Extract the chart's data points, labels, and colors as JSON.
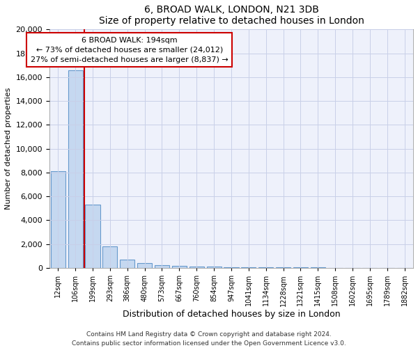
{
  "title": "6, BROAD WALK, LONDON, N21 3DB",
  "subtitle": "Size of property relative to detached houses in London",
  "xlabel": "Distribution of detached houses by size in London",
  "ylabel": "Number of detached properties",
  "categories": [
    "12sqm",
    "106sqm",
    "199sqm",
    "293sqm",
    "386sqm",
    "480sqm",
    "573sqm",
    "667sqm",
    "760sqm",
    "854sqm",
    "947sqm",
    "1041sqm",
    "1134sqm",
    "1228sqm",
    "1321sqm",
    "1415sqm",
    "1508sqm",
    "1602sqm",
    "1695sqm",
    "1789sqm",
    "1882sqm"
  ],
  "values": [
    8100,
    16600,
    5300,
    1800,
    700,
    380,
    250,
    170,
    130,
    100,
    80,
    60,
    50,
    40,
    35,
    30,
    25,
    20,
    15,
    12,
    10
  ],
  "bar_color": "#c5d8f0",
  "bar_edge_color": "#6699cc",
  "property_line_color": "#cc0000",
  "annotation_text": "6 BROAD WALK: 194sqm\n← 73% of detached houses are smaller (24,012)\n27% of semi-detached houses are larger (8,837) →",
  "annotation_box_color": "#ffffff",
  "annotation_box_edge": "#cc0000",
  "ylim": [
    0,
    20000
  ],
  "yticks": [
    0,
    2000,
    4000,
    6000,
    8000,
    10000,
    12000,
    14000,
    16000,
    18000,
    20000
  ],
  "footer_line1": "Contains HM Land Registry data © Crown copyright and database right 2024.",
  "footer_line2": "Contains public sector information licensed under the Open Government Licence v3.0.",
  "bg_color": "#eef1fb",
  "grid_color": "#c8cfe8",
  "fig_width": 6.0,
  "fig_height": 5.0,
  "dpi": 100
}
